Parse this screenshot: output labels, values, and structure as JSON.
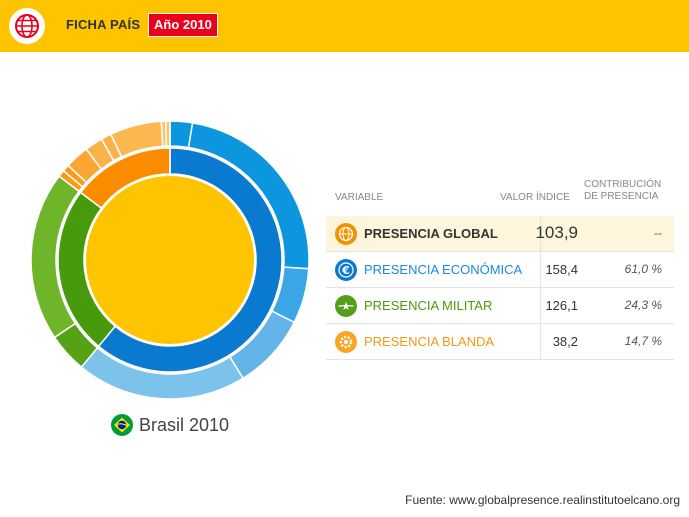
{
  "header": {
    "title": "FICHA PAÍS",
    "year_badge": "Año 2010",
    "logo_icon": "globe-icon"
  },
  "caption": {
    "text": "Brasil 2010",
    "flag_icon": "brazil-flag-icon"
  },
  "table": {
    "headers": {
      "variable": "VARIABLE",
      "value": "VALOR ÍNDICE",
      "contribution_line1": "CONTRIBUCIÓN",
      "contribution_line2": "DE PRESENCIA"
    },
    "rows": [
      {
        "label": "PRESENCIA GLOBAL",
        "value": "103,9",
        "contribution": "--",
        "color": "#333333",
        "icon": "globe-icon",
        "icon_color": "#f39200"
      },
      {
        "label": "PRESENCIA ECONÓMICA",
        "value": "158,4",
        "contribution": "61,0 %",
        "color": "#1a8cd8",
        "icon": "euro-icon",
        "icon_color": "#0a7ad0"
      },
      {
        "label": "PRESENCIA MILITAR",
        "value": "126,1",
        "contribution": "24,3 %",
        "color": "#4c9a0e",
        "icon": "star-wings-icon",
        "icon_color": "#55a019"
      },
      {
        "label": "PRESENCIA BLANDA",
        "value": "38,2",
        "contribution": "14,7 %",
        "color": "#f39a12",
        "icon": "gear-icon",
        "icon_color": "#f6a623"
      }
    ]
  },
  "source": "Fuente: www.globalpresence.realinstitutoelcano.org",
  "chart_data": {
    "type": "sunburst",
    "center": {
      "name": "PRESENCIA GLOBAL",
      "value": 103.9,
      "color": "#ffc400"
    },
    "middle_ring": [
      {
        "name": "PRESENCIA ECONÓMICA",
        "share": 61.0,
        "color": "#0a7ad0"
      },
      {
        "name": "PRESENCIA MILITAR",
        "share": 24.3,
        "color": "#479a0c"
      },
      {
        "name": "PRESENCIA BLANDA",
        "share": 14.7,
        "color": "#fb8c00"
      }
    ],
    "outer_ring": [
      {
        "parent": "PRESENCIA ECONÓMICA",
        "share": 2.6,
        "color": "#0b96dd"
      },
      {
        "parent": "PRESENCIA ECONÓMICA",
        "share": 23.4,
        "color": "#0b96dd"
      },
      {
        "parent": "PRESENCIA ECONÓMICA",
        "share": 6.4,
        "color": "#3aa6e6"
      },
      {
        "parent": "PRESENCIA ECONÓMICA",
        "share": 8.8,
        "color": "#63b4e9"
      },
      {
        "parent": "PRESENCIA ECONÓMICA",
        "share": 19.8,
        "color": "#7cc3ec"
      },
      {
        "parent": "PRESENCIA MILITAR",
        "share": 4.6,
        "color": "#55a315"
      },
      {
        "parent": "PRESENCIA MILITAR",
        "share": 19.7,
        "color": "#6eb52a"
      },
      {
        "parent": "PRESENCIA BLANDA",
        "share": 0.8,
        "color": "#fb9a1a"
      },
      {
        "parent": "PRESENCIA BLANDA",
        "share": 0.8,
        "color": "#fb9a1a"
      },
      {
        "parent": "PRESENCIA BLANDA",
        "share": 2.8,
        "color": "#fba532"
      },
      {
        "parent": "PRESENCIA BLANDA",
        "share": 2.1,
        "color": "#fbb24a"
      },
      {
        "parent": "PRESENCIA BLANDA",
        "share": 1.2,
        "color": "#fbb24a"
      },
      {
        "parent": "PRESENCIA BLANDA",
        "share": 6.0,
        "color": "#fcb850"
      },
      {
        "parent": "PRESENCIA BLANDA",
        "share": 0.5,
        "color": "#fcc46a"
      },
      {
        "parent": "PRESENCIA BLANDA",
        "share": 0.5,
        "color": "#fcc46a"
      }
    ]
  }
}
